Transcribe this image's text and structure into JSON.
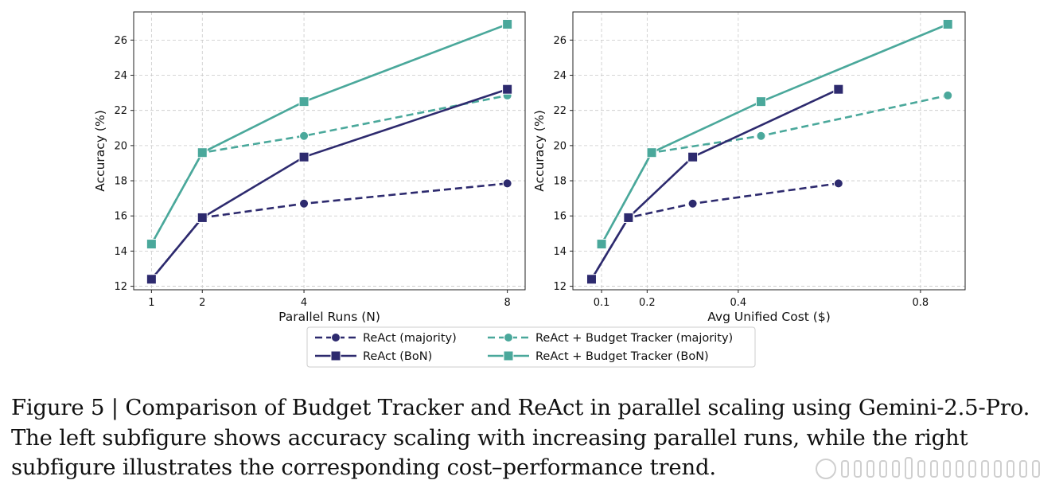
{
  "chart_data": [
    {
      "type": "line",
      "xlabel": "Parallel Runs (N)",
      "ylabel": "Accuracy (%)",
      "xlim": [
        0.65,
        8.35
      ],
      "ylim": [
        11.8,
        27.6
      ],
      "xticks": [
        1,
        2,
        4,
        8
      ],
      "xtick_labels": [
        "1",
        "2",
        "4",
        "8"
      ],
      "yticks": [
        12,
        14,
        16,
        18,
        20,
        22,
        24,
        26
      ],
      "ytick_labels": [
        "12",
        "14",
        "16",
        "18",
        "20",
        "22",
        "24",
        "26"
      ],
      "grid": true,
      "series": [
        {
          "name": "ReAct (majority)",
          "x": [
            1,
            2,
            4,
            8
          ],
          "values": [
            12.4,
            15.9,
            16.7,
            17.85
          ]
        },
        {
          "name": "ReAct (BoN)",
          "x": [
            1,
            2,
            4,
            8
          ],
          "values": [
            12.4,
            15.9,
            19.35,
            23.2
          ]
        },
        {
          "name": "ReAct + Budget Tracker (majority)",
          "x": [
            1,
            2,
            4,
            8
          ],
          "values": [
            14.4,
            19.6,
            20.55,
            22.85
          ]
        },
        {
          "name": "ReAct + Budget Tracker (BoN)",
          "x": [
            1,
            2,
            4,
            8
          ],
          "values": [
            14.4,
            19.6,
            22.5,
            26.9
          ]
        }
      ]
    },
    {
      "type": "line",
      "xlabel": "Avg Unified Cost ($)",
      "ylabel": "Accuracy (%)",
      "xlim": [
        0.037,
        0.898
      ],
      "ylim": [
        11.8,
        27.6
      ],
      "xticks": [
        0.1,
        0.2,
        0.4,
        0.8
      ],
      "xtick_labels": [
        "0.1",
        "0.2",
        "0.4",
        "0.8"
      ],
      "yticks": [
        12,
        14,
        16,
        18,
        20,
        22,
        24,
        26
      ],
      "ytick_labels": [
        "12",
        "14",
        "16",
        "18",
        "20",
        "22",
        "24",
        "26"
      ],
      "grid": true,
      "series": [
        {
          "name": "ReAct (majority)",
          "x": [
            0.078,
            0.159,
            0.3,
            0.62
          ],
          "values": [
            12.4,
            15.9,
            16.7,
            17.85
          ]
        },
        {
          "name": "ReAct (BoN)",
          "x": [
            0.078,
            0.159,
            0.3,
            0.62
          ],
          "values": [
            12.4,
            15.9,
            19.35,
            23.2
          ]
        },
        {
          "name": "ReAct + Budget Tracker (majority)",
          "x": [
            0.1,
            0.21,
            0.45,
            0.86
          ],
          "values": [
            14.4,
            19.6,
            20.55,
            22.85
          ]
        },
        {
          "name": "ReAct + Budget Tracker (BoN)",
          "x": [
            0.1,
            0.21,
            0.45,
            0.86
          ],
          "values": [
            14.4,
            19.6,
            22.5,
            26.9
          ]
        }
      ]
    }
  ],
  "legend": {
    "placement": "bottom-center",
    "entries": [
      "ReAct (majority)",
      "ReAct + Budget Tracker (majority)",
      "ReAct (BoN)",
      "ReAct + Budget Tracker (BoN)"
    ]
  },
  "styles": {
    "ReAct (majority)": {
      "color": "#2d2a6e",
      "dash": true,
      "marker": "circle"
    },
    "ReAct (BoN)": {
      "color": "#2d2a6e",
      "dash": false,
      "marker": "square"
    },
    "ReAct + Budget Tracker (majority)": {
      "color": "#4aa89b",
      "dash": true,
      "marker": "circle"
    },
    "ReAct + Budget Tracker (BoN)": {
      "color": "#4aa89b",
      "dash": false,
      "marker": "square"
    }
  },
  "caption": "Figure 5 | Comparison of Budget Tracker and ReAct in parallel scaling using Gemini-2.5-Pro. The left subfigure shows accuracy scaling with increasing parallel runs, while the right subfigure illustrates the corresponding cost–performance trend."
}
